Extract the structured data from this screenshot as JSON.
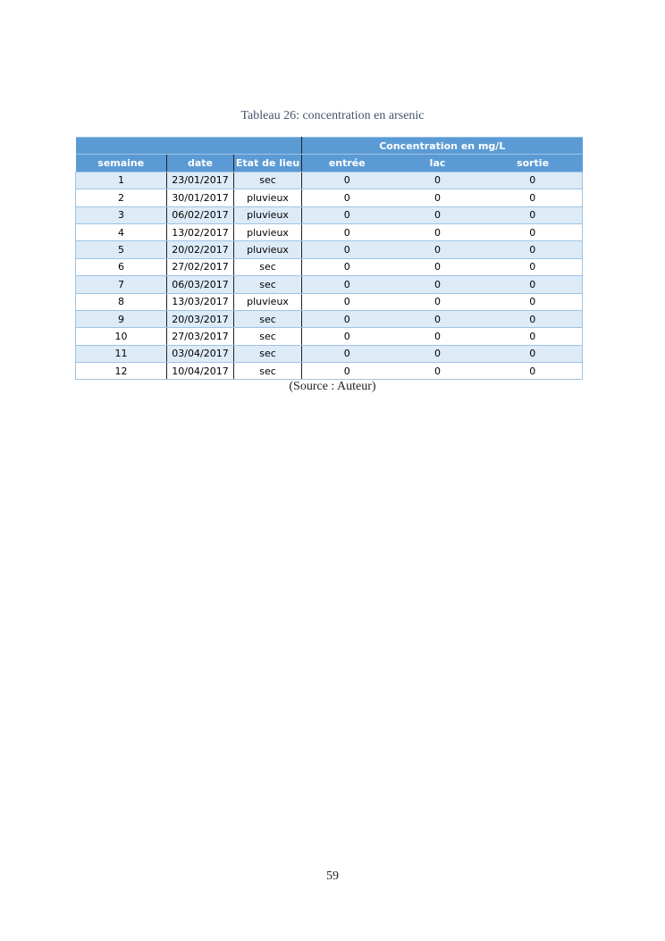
{
  "caption": "Tableau 26: concentration en arsenic",
  "table": {
    "group_header": "Concentration en mg/L",
    "columns": [
      "semaine",
      "date",
      "Etat de lieu",
      "entrée",
      "lac",
      "sortie"
    ],
    "rows": [
      [
        1,
        "23/01/2017",
        "sec",
        0,
        0,
        0
      ],
      [
        2,
        "30/01/2017",
        "pluvieux",
        0,
        0,
        0
      ],
      [
        3,
        "06/02/2017",
        "pluvieux",
        0,
        0,
        0
      ],
      [
        4,
        "13/02/2017",
        "pluvieux",
        0,
        0,
        0
      ],
      [
        5,
        "20/02/2017",
        "pluvieux",
        0,
        0,
        0
      ],
      [
        6,
        "27/02/2017",
        "sec",
        0,
        0,
        0
      ],
      [
        7,
        "06/03/2017",
        "sec",
        0,
        0,
        0
      ],
      [
        8,
        "13/03/2017",
        "pluvieux",
        0,
        0,
        0
      ],
      [
        9,
        "20/03/2017",
        "sec",
        0,
        0,
        0
      ],
      [
        10,
        "27/03/2017",
        "sec",
        0,
        0,
        0
      ],
      [
        11,
        "03/04/2017",
        "sec",
        0,
        0,
        0
      ],
      [
        12,
        "10/04/2017",
        "sec",
        0,
        0,
        0
      ]
    ]
  },
  "source": "(Source : Auteur)",
  "page_number": "59"
}
